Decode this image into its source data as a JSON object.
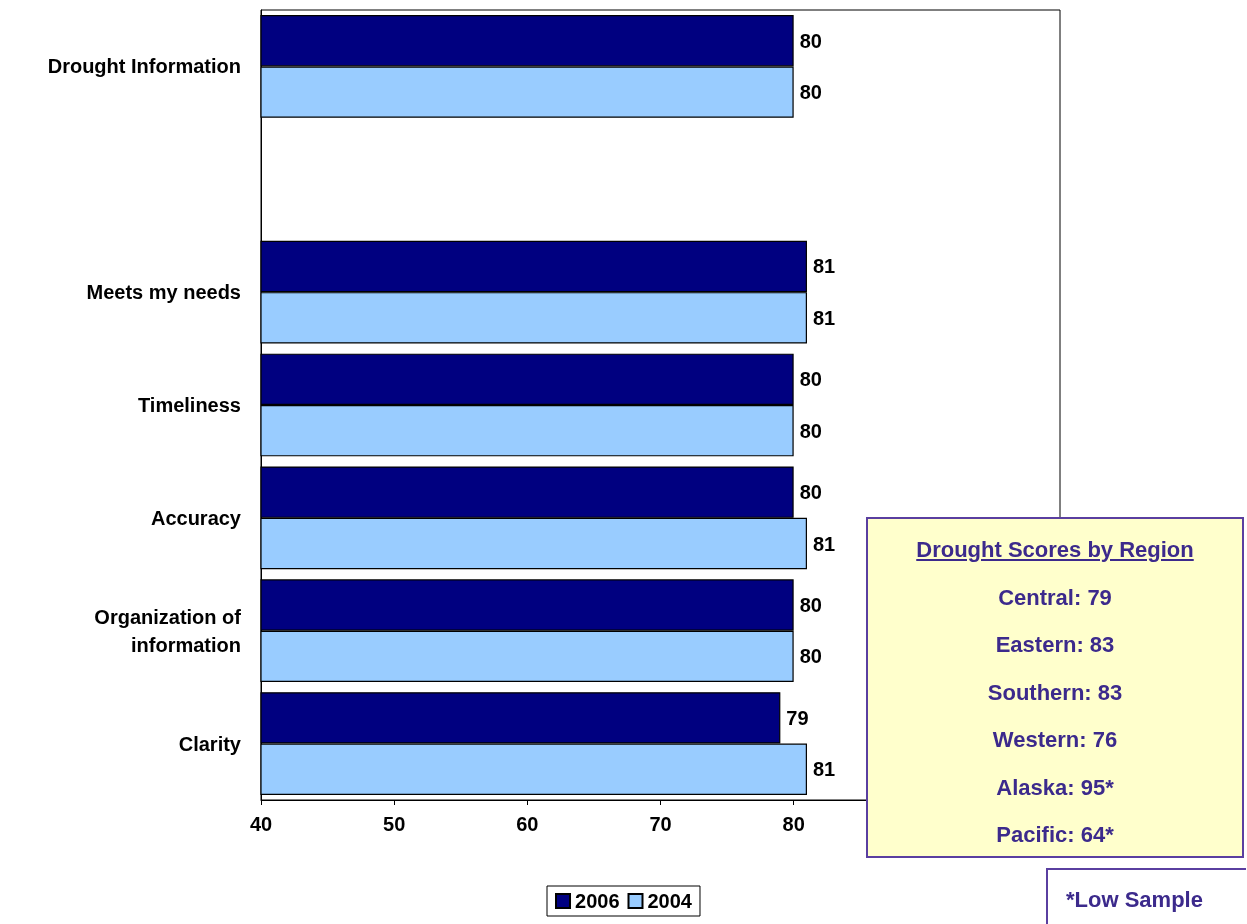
{
  "chart_data": {
    "type": "bar",
    "orientation": "horizontal",
    "categories": [
      "Drought Information",
      null,
      "Meets my needs",
      "Timeliness",
      "Accuracy",
      "Organization of\ninformation",
      "Clarity"
    ],
    "series": [
      {
        "name": "2006",
        "color": "#000080",
        "values": [
          80,
          null,
          81,
          80,
          80,
          80,
          79
        ]
      },
      {
        "name": "2004",
        "color": "#99ccff",
        "values": [
          80,
          null,
          81,
          80,
          81,
          80,
          81
        ]
      }
    ],
    "xlim": [
      40,
      100
    ],
    "xticks": [
      40,
      50,
      60,
      70,
      80
    ],
    "data_labels": true,
    "grid": false,
    "legend": "bottom",
    "annotations": [
      "Drought Scores by Region",
      "Central: 79",
      "Eastern: 83",
      "Southern: 83",
      "Western: 76",
      "Alaska: 95*",
      "Pacific: 64*",
      "*Low Sample"
    ]
  }
}
